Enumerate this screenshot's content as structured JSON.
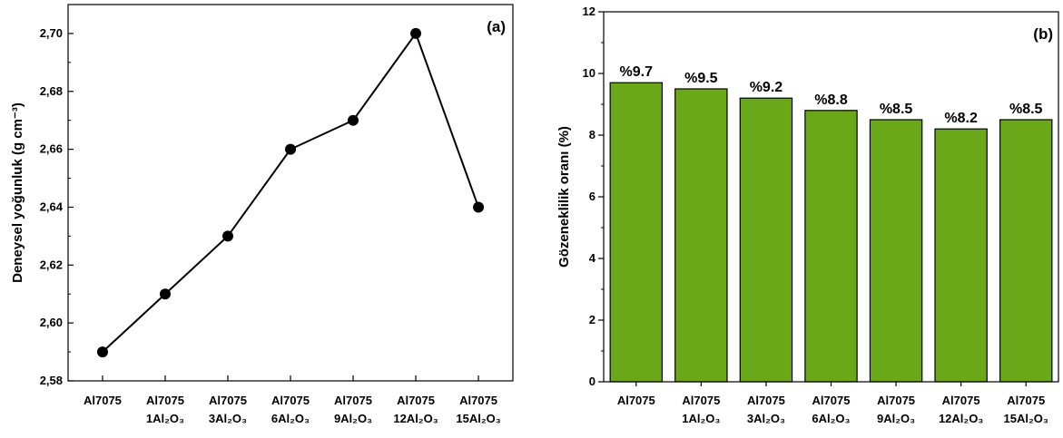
{
  "chart_data": [
    {
      "type": "line",
      "panel_label": "(a)",
      "ylabel": "Deneysel yoğunluk (g cm⁻³)",
      "categories": [
        {
          "line1": "Al7075",
          "line2": ""
        },
        {
          "line1": "Al7075",
          "line2": "1Al₂O₃"
        },
        {
          "line1": "Al7075",
          "line2": "3Al₂O₃"
        },
        {
          "line1": "Al7075",
          "line2": "6Al₂O₃"
        },
        {
          "line1": "Al7075",
          "line2": "9Al₂O₃"
        },
        {
          "line1": "Al7075",
          "line2": "12Al₂O₃"
        },
        {
          "line1": "Al7075",
          "line2": "15Al₂O₃"
        }
      ],
      "values": [
        2.59,
        2.61,
        2.63,
        2.66,
        2.67,
        2.7,
        2.64
      ],
      "ylim": [
        2.58,
        2.71
      ],
      "yticks": [
        2.58,
        2.6,
        2.62,
        2.64,
        2.66,
        2.68,
        2.7
      ],
      "ytick_labels": [
        "2,58",
        "2,60",
        "2,62",
        "2,64",
        "2,66",
        "2,68",
        "2,70"
      ],
      "grid": false,
      "line_color": "#000000",
      "marker_color": "#000000"
    },
    {
      "type": "bar",
      "panel_label": "(b)",
      "ylabel": "Gözeneklilik oranı (%)",
      "categories": [
        {
          "line1": "Al7075",
          "line2": ""
        },
        {
          "line1": "Al7075",
          "line2": "1Al₂O₃"
        },
        {
          "line1": "Al7075",
          "line2": "3Al₂O₃"
        },
        {
          "line1": "Al7075",
          "line2": "6Al₂O₃"
        },
        {
          "line1": "Al7075",
          "line2": "9Al₂O₃"
        },
        {
          "line1": "Al7075",
          "line2": "12Al₂O₃"
        },
        {
          "line1": "Al7075",
          "line2": "15Al₂O₃"
        }
      ],
      "values": [
        9.7,
        9.5,
        9.2,
        8.8,
        8.5,
        8.2,
        8.5
      ],
      "data_labels": [
        "%9.7",
        "%9.5",
        "%9.2",
        "%8.8",
        "%8.5",
        "%8.2",
        "%8.5"
      ],
      "ylim": [
        0,
        12
      ],
      "yticks": [
        0,
        2,
        4,
        6,
        8,
        10,
        12
      ],
      "ytick_labels": [
        "0",
        "2",
        "4",
        "6",
        "8",
        "10",
        "12"
      ],
      "grid": false,
      "bar_color": "#6aa81a",
      "bar_edge_color": "#000000"
    }
  ]
}
